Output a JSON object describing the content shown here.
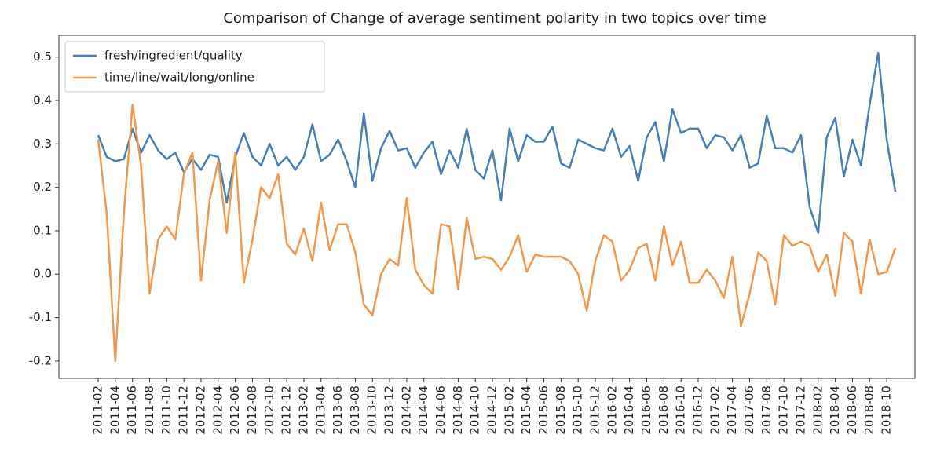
{
  "chart_data": {
    "type": "line",
    "title": "Comparison of Change of average sentiment polarity in two topics over time",
    "categories": [
      "2011-02",
      null,
      "2011-04",
      null,
      "2011-06",
      null,
      "2011-08",
      null,
      "2011-10",
      null,
      "2011-12",
      null,
      "2012-02",
      null,
      "2012-04",
      null,
      "2012-06",
      null,
      "2012-08",
      null,
      "2012-10",
      null,
      "2012-12",
      null,
      "2013-02",
      null,
      "2013-04",
      null,
      "2013-06",
      null,
      "2013-08",
      null,
      "2013-10",
      null,
      "2013-12",
      null,
      "2014-02",
      null,
      "2014-04",
      null,
      "2014-06",
      null,
      "2014-08",
      null,
      "2014-10",
      null,
      "2014-12",
      null,
      "2015-02",
      null,
      "2015-04",
      null,
      "2015-06",
      null,
      "2015-08",
      null,
      "2015-10",
      null,
      "2015-12",
      null,
      "2016-02",
      null,
      "2016-04",
      null,
      "2016-06",
      null,
      "2016-08",
      null,
      "2016-10",
      null,
      "2016-12",
      null,
      "2017-02",
      null,
      "2017-04",
      null,
      "2017-06",
      null,
      "2017-08",
      null,
      "2017-10",
      null,
      "2017-12",
      null,
      "2018-02",
      null,
      "2018-04",
      null,
      "2018-06",
      null,
      "2018-08",
      null,
      "2018-10",
      null
    ],
    "series": [
      {
        "name": "fresh/ingredient/quality",
        "color": "#4a7fb5",
        "values": [
          0.32,
          0.27,
          0.26,
          0.265,
          0.335,
          0.28,
          0.32,
          0.285,
          0.265,
          0.28,
          0.235,
          0.265,
          0.24,
          0.275,
          0.27,
          0.165,
          0.27,
          0.325,
          0.27,
          0.25,
          0.3,
          0.25,
          0.27,
          0.24,
          0.27,
          0.345,
          0.26,
          0.275,
          0.31,
          0.26,
          0.2,
          0.37,
          0.215,
          0.29,
          0.33,
          0.285,
          0.29,
          0.245,
          0.28,
          0.305,
          0.23,
          0.285,
          0.245,
          0.335,
          0.24,
          0.22,
          0.285,
          0.17,
          0.335,
          0.26,
          0.32,
          0.305,
          0.305,
          0.34,
          0.255,
          0.245,
          0.31,
          0.3,
          0.29,
          0.285,
          0.335,
          0.27,
          0.295,
          0.215,
          0.315,
          0.35,
          0.26,
          0.38,
          0.325,
          0.335,
          0.335,
          0.29,
          0.32,
          0.315,
          0.285,
          0.32,
          0.245,
          0.255,
          0.365,
          0.29,
          0.29,
          0.28,
          0.32,
          0.155,
          0.095,
          0.315,
          0.36,
          0.225,
          0.31,
          0.25,
          0.39,
          0.51,
          0.31,
          0.19
        ]
      },
      {
        "name": "time/line/wait/long/online",
        "color": "#f0994e",
        "values": [
          0.31,
          0.14,
          -0.2,
          0.14,
          0.39,
          0.25,
          -0.045,
          0.08,
          0.11,
          0.08,
          0.23,
          0.28,
          -0.015,
          0.17,
          0.26,
          0.095,
          0.28,
          -0.02,
          0.08,
          0.2,
          0.175,
          0.23,
          0.07,
          0.045,
          0.105,
          0.03,
          0.165,
          0.055,
          0.115,
          0.115,
          0.05,
          -0.07,
          -0.095,
          0.0,
          0.035,
          0.02,
          0.175,
          0.01,
          -0.025,
          -0.045,
          0.115,
          0.11,
          -0.035,
          0.13,
          0.035,
          0.04,
          0.035,
          0.01,
          0.04,
          0.09,
          0.005,
          0.045,
          0.04,
          0.04,
          0.04,
          0.03,
          0.0,
          -0.085,
          0.03,
          0.09,
          0.075,
          -0.015,
          0.01,
          0.06,
          0.07,
          -0.015,
          0.11,
          0.02,
          0.075,
          -0.02,
          -0.02,
          0.01,
          -0.015,
          -0.055,
          0.04,
          -0.12,
          -0.045,
          0.05,
          0.03,
          -0.07,
          0.09,
          0.065,
          0.075,
          0.065,
          0.005,
          0.045,
          -0.05,
          0.095,
          0.075,
          -0.045,
          0.08,
          0.0,
          0.005,
          0.06
        ]
      }
    ],
    "ylim": [
      -0.24,
      0.55
    ],
    "yticks": [
      -0.2,
      -0.1,
      {
        "value": 0,
        "label": "0.0"
      },
      0.1,
      0.2,
      0.3,
      0.4,
      0.5
    ],
    "legend": "upper left"
  }
}
